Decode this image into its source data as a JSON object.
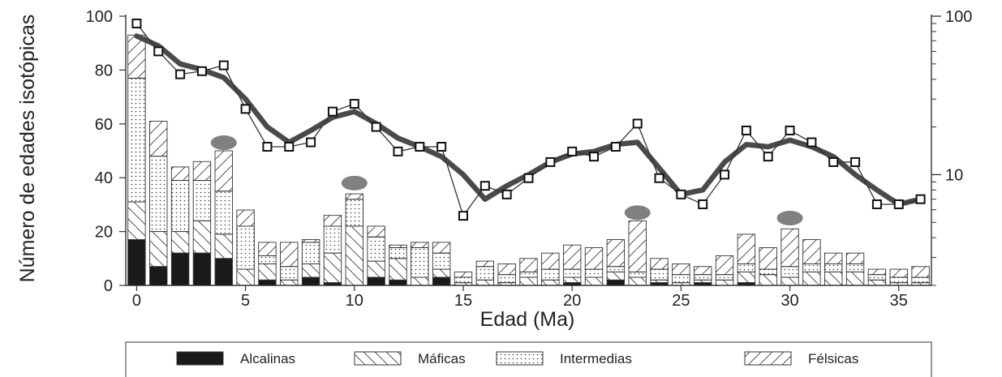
{
  "chart_data": {
    "type": "bar",
    "title": "",
    "xlabel": "Edad (Ma)",
    "ylabel": "Número de edades isotópicas",
    "xlim": [
      -0.5,
      36.5
    ],
    "ylim": [
      0,
      100
    ],
    "x_ticks": [
      "0",
      "5",
      "10",
      "15",
      "20",
      "25",
      "30",
      "35"
    ],
    "y_ticks": [
      "0",
      "20",
      "40",
      "60",
      "80",
      "100"
    ],
    "y2_scale": "log",
    "y2lim": [
      2,
      100
    ],
    "y2_ticks": [
      "10",
      "100"
    ],
    "x": [
      0,
      1,
      2,
      3,
      4,
      5,
      6,
      7,
      8,
      9,
      10,
      11,
      12,
      13,
      14,
      15,
      16,
      17,
      18,
      19,
      20,
      21,
      22,
      23,
      24,
      25,
      26,
      27,
      28,
      29,
      30,
      31,
      32,
      33,
      34,
      35,
      36
    ],
    "series": [
      {
        "name": "Alcalinas",
        "values": [
          17,
          7,
          12,
          12,
          10,
          0,
          2,
          0,
          3,
          1,
          0,
          3,
          2,
          0,
          3,
          0,
          0,
          0,
          0,
          0,
          1,
          0,
          2,
          0,
          1,
          0,
          1,
          0,
          1,
          0,
          0,
          0,
          0,
          0,
          0,
          0,
          0
        ]
      },
      {
        "name": "Máficas",
        "values": [
          14,
          13,
          8,
          12,
          9,
          6,
          6,
          2,
          5,
          11,
          22,
          6,
          8,
          3,
          3,
          1,
          2,
          1,
          3,
          2,
          2,
          3,
          3,
          3,
          1,
          1,
          1,
          2,
          4,
          4,
          3,
          5,
          5,
          5,
          2,
          1,
          1
        ]
      },
      {
        "name": "Intermedias",
        "values": [
          46,
          28,
          19,
          15,
          16,
          16,
          3,
          5,
          8,
          10,
          10,
          9,
          4,
          11,
          6,
          2,
          5,
          3,
          2,
          4,
          3,
          3,
          2,
          2,
          4,
          3,
          2,
          2,
          3,
          2,
          4,
          3,
          3,
          3,
          2,
          2,
          2
        ]
      },
      {
        "name": "Félsicas",
        "values": [
          16,
          13,
          5,
          7,
          15,
          6,
          5,
          9,
          1,
          4,
          2,
          4,
          1,
          2,
          4,
          2,
          2,
          4,
          5,
          6,
          9,
          8,
          10,
          19,
          4,
          4,
          3,
          7,
          11,
          8,
          14,
          9,
          4,
          4,
          2,
          3,
          4
        ]
      }
    ],
    "line_raw": {
      "axis": "right",
      "values": [
        90,
        60,
        43,
        45,
        49,
        26,
        15,
        15,
        16,
        25,
        28,
        20,
        14,
        15,
        15,
        5.5,
        8.5,
        7.5,
        9.5,
        12,
        14,
        13,
        15,
        21,
        9.5,
        7.5,
        6.5,
        10,
        19,
        13,
        19,
        16,
        12,
        12,
        6.5,
        6.5,
        7
      ]
    },
    "line_smoothed": {
      "axis": "right",
      "values": [
        75,
        65,
        50,
        46,
        41,
        30,
        20,
        16,
        19,
        23,
        25,
        21,
        17,
        15,
        13,
        10,
        7,
        8.5,
        10,
        12,
        13.5,
        14,
        15.5,
        16,
        11,
        7.5,
        8,
        12,
        15.5,
        15,
        16.5,
        15,
        13,
        10,
        8,
        6.5,
        7
      ]
    },
    "annotations": [
      {
        "type": "peak-marker",
        "x": 4,
        "y": 53
      },
      {
        "type": "peak-marker",
        "x": 10,
        "y": 38
      },
      {
        "type": "peak-marker",
        "x": 23,
        "y": 27
      },
      {
        "type": "peak-marker",
        "x": 30,
        "y": 25
      }
    ],
    "legend": {
      "placement": "bottom",
      "entries": [
        {
          "label": "Alcalinas",
          "pattern": "solid"
        },
        {
          "label": "Máficas",
          "pattern": "backslash"
        },
        {
          "label": "Intermedias",
          "pattern": "dots"
        },
        {
          "label": "Félsicas",
          "pattern": "slash"
        }
      ]
    },
    "colors": {
      "bars": "#1a1a1a",
      "line": "#333333",
      "smooth": "#4a4a4a",
      "marker": "#808080",
      "background": "#ffffff"
    }
  }
}
